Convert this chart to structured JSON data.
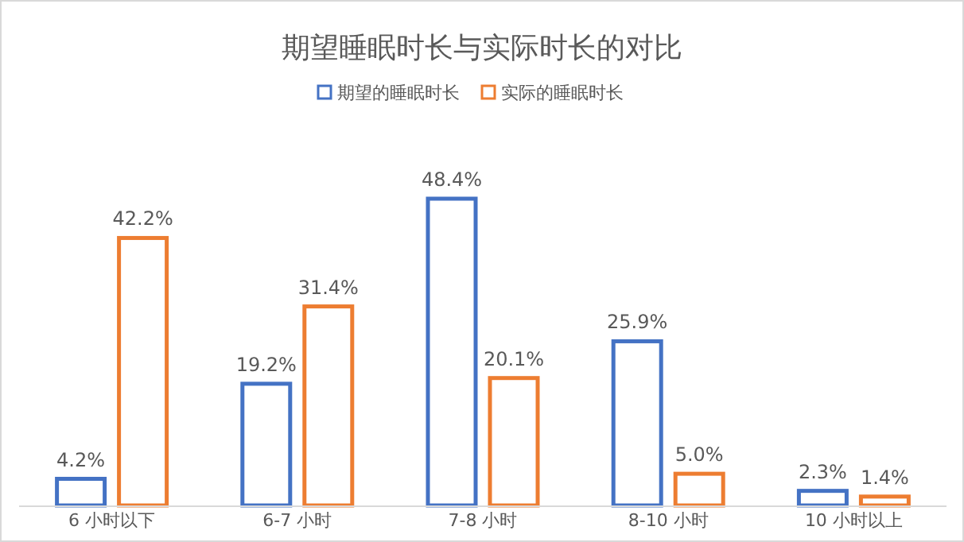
{
  "chart_data": {
    "type": "bar",
    "title": "期望睡眠时长与实际时长的对比",
    "categories": [
      "6 小时以下",
      "6-7 小时",
      "7-8 小时",
      "8-10 小时",
      "10 小时以上"
    ],
    "series": [
      {
        "name": "期望的睡眠时长",
        "color": "#4472c4",
        "values": [
          4.2,
          19.2,
          48.4,
          25.9,
          2.3
        ],
        "value_labels": [
          "4.2%",
          "19.2%",
          "48.4%",
          "25.9%",
          "2.3%"
        ]
      },
      {
        "name": "实际的睡眠时长",
        "color": "#ed7d31",
        "values": [
          42.2,
          31.4,
          20.1,
          5.0,
          1.4
        ],
        "value_labels": [
          "42.2%",
          "31.4%",
          "20.1%",
          "5.0%",
          "1.4%"
        ]
      }
    ],
    "legend": "top"
  }
}
